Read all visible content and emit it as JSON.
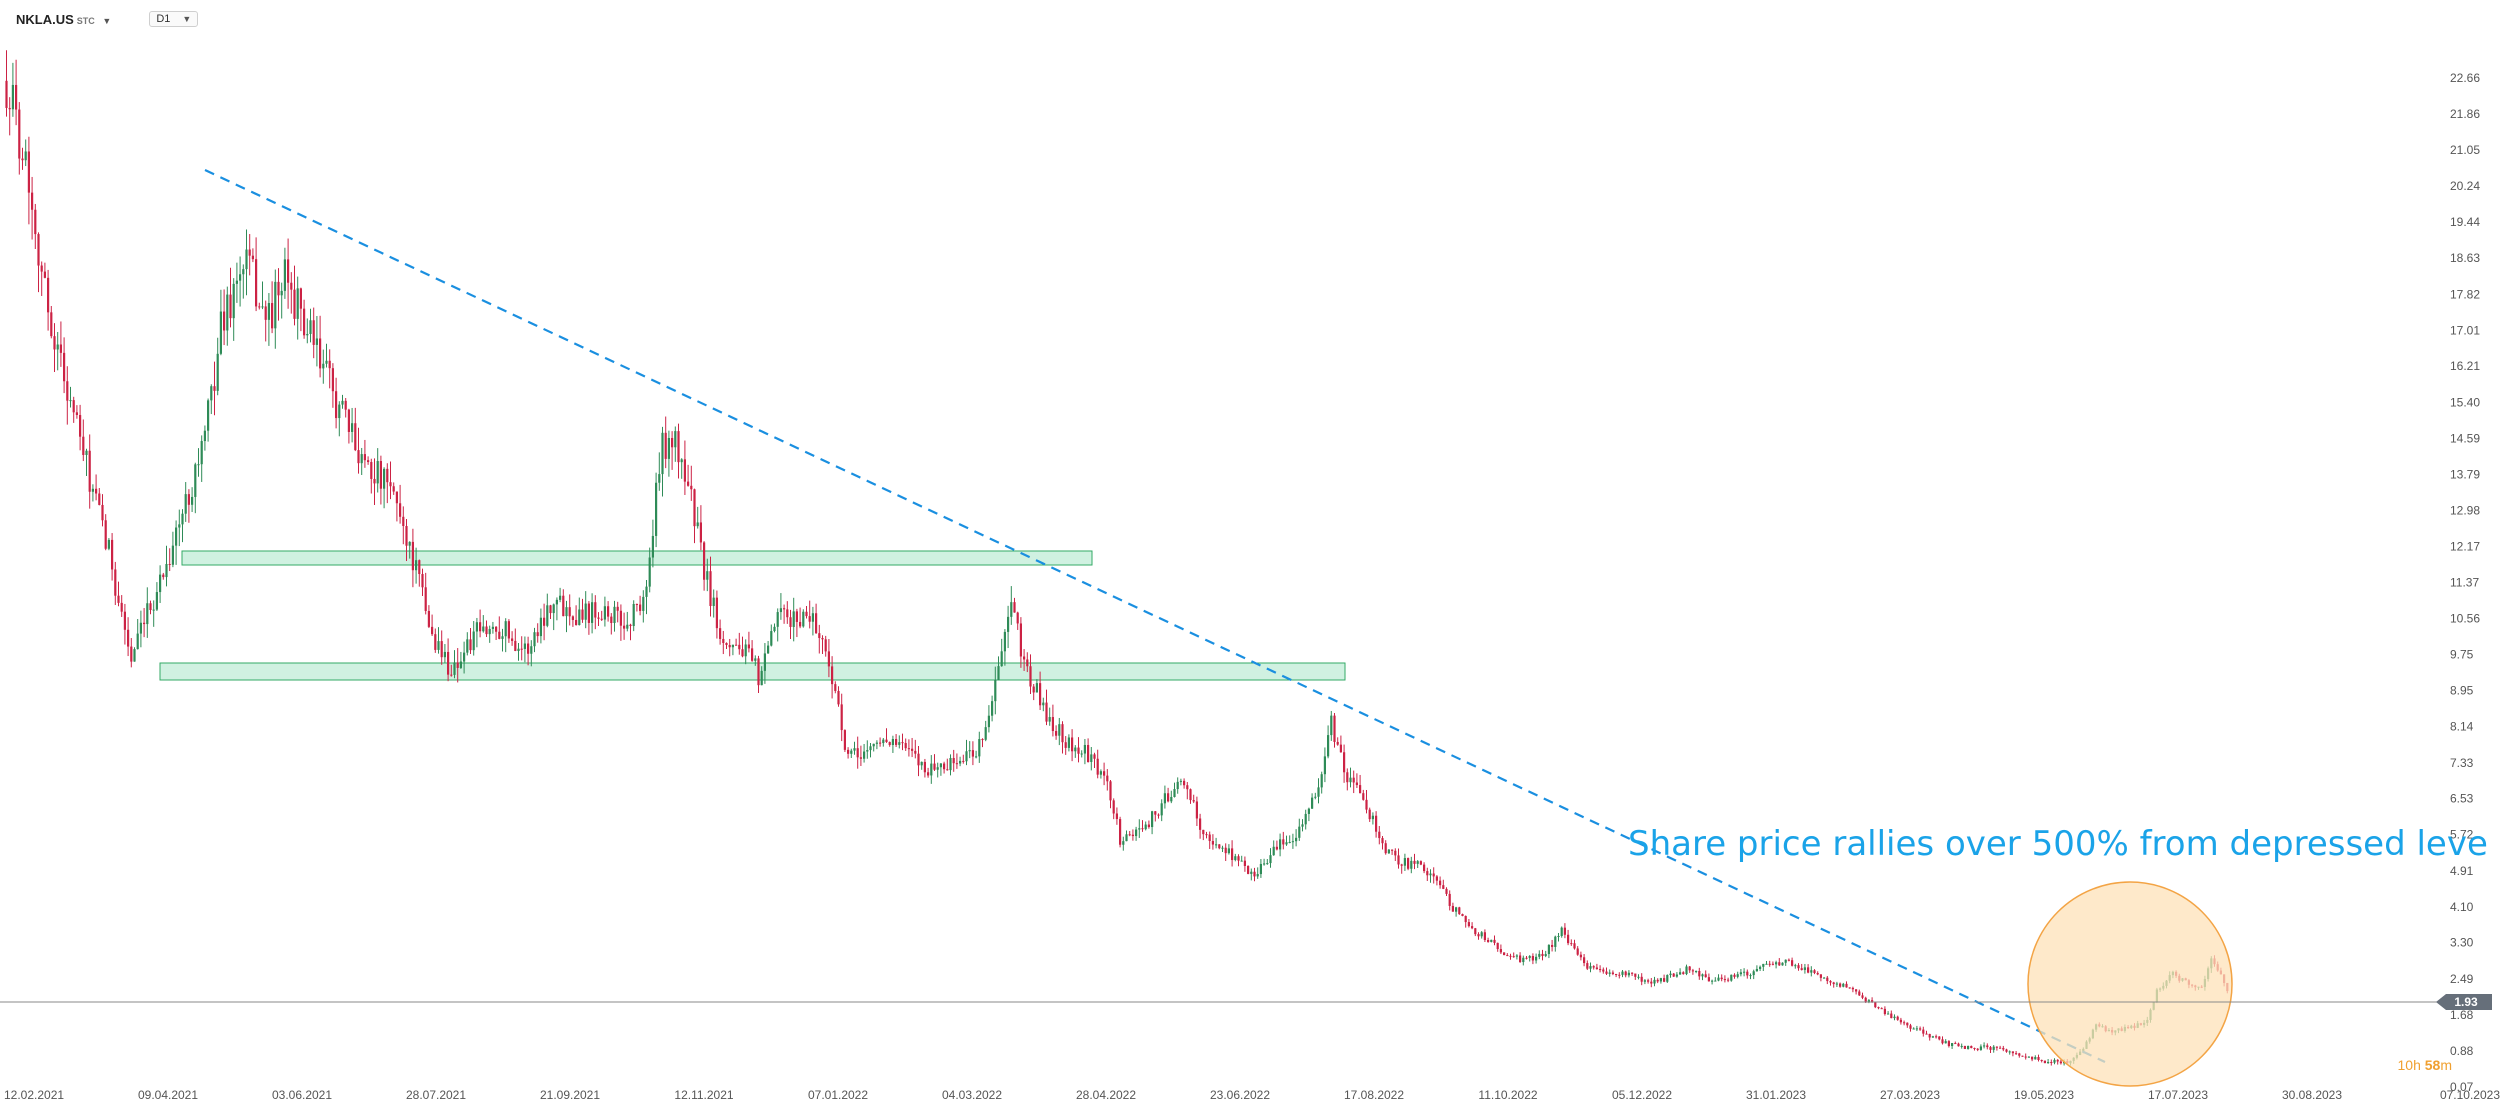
{
  "toolbar": {
    "symbol": "NKLA.US",
    "symbol_sub": "STC",
    "timeframe": "D1",
    "dropdown_icon": "caret-down-icon"
  },
  "countdown": {
    "hours": "10h",
    "minutes": "58",
    "unit": "m"
  },
  "colors": {
    "up": "#2e8b57",
    "down": "#cc2244",
    "trendline": "#1a8fe0",
    "zone_fill": "#c8efdc",
    "zone_stroke": "#33aa66",
    "highlight_fill": "#fde2b8",
    "highlight_stroke": "#f3a445",
    "current_price_bg": "#666f7a",
    "annotation": "#1aa3e8",
    "countdown": "#f0a030"
  },
  "chart_data": {
    "type": "candlestick",
    "ylim": [
      0.07,
      23.2
    ],
    "y_ticks": [
      "22.66",
      "21.86",
      "21.05",
      "20.24",
      "19.44",
      "18.63",
      "17.82",
      "17.01",
      "16.21",
      "15.40",
      "14.59",
      "13.79",
      "12.98",
      "12.17",
      "11.37",
      "10.56",
      "9.75",
      "8.95",
      "8.14",
      "7.33",
      "6.53",
      "5.72",
      "4.91",
      "4.10",
      "3.30",
      "2.49",
      "1.68",
      "0.88",
      "0.07"
    ],
    "x_ticks": [
      "12.02.2021",
      "09.04.2021",
      "03.06.2021",
      "28.07.2021",
      "21.09.2021",
      "12.11.2021",
      "07.01.2022",
      "04.03.2022",
      "28.04.2022",
      "23.06.2022",
      "17.08.2022",
      "11.10.2022",
      "05.12.2022",
      "31.01.2023",
      "27.03.2023",
      "19.05.2023",
      "17.07.2023",
      "30.08.2023",
      "07.10.2023"
    ],
    "current_price": "1.93",
    "annotation": "Share price rallies over 500% from depressed leve",
    "price_path": [
      [
        0,
        22.6
      ],
      [
        20,
        20.8
      ],
      [
        40,
        17.6
      ],
      [
        60,
        15.8
      ],
      [
        85,
        13.5
      ],
      [
        105,
        11.8
      ],
      [
        125,
        9.6
      ],
      [
        150,
        11.2
      ],
      [
        175,
        12.8
      ],
      [
        200,
        14.8
      ],
      [
        215,
        17.2
      ],
      [
        240,
        18.6
      ],
      [
        260,
        17.2
      ],
      [
        280,
        18.2
      ],
      [
        300,
        17.0
      ],
      [
        320,
        16.0
      ],
      [
        345,
        14.6
      ],
      [
        370,
        13.8
      ],
      [
        390,
        13.2
      ],
      [
        410,
        11.6
      ],
      [
        425,
        10.2
      ],
      [
        445,
        9.4
      ],
      [
        470,
        10.2
      ],
      [
        495,
        10.4
      ],
      [
        520,
        9.8
      ],
      [
        545,
        11.0
      ],
      [
        570,
        10.7
      ],
      [
        595,
        10.8
      ],
      [
        620,
        10.4
      ],
      [
        640,
        11.2
      ],
      [
        655,
        14.4
      ],
      [
        665,
        14.6
      ],
      [
        680,
        13.8
      ],
      [
        700,
        11.4
      ],
      [
        715,
        10.2
      ],
      [
        735,
        9.9
      ],
      [
        755,
        9.2
      ],
      [
        770,
        10.6
      ],
      [
        785,
        10.5
      ],
      [
        805,
        10.7
      ],
      [
        825,
        9.4
      ],
      [
        840,
        7.4
      ],
      [
        860,
        7.6
      ],
      [
        880,
        7.9
      ],
      [
        900,
        7.6
      ],
      [
        920,
        7.2
      ],
      [
        945,
        7.3
      ],
      [
        970,
        7.6
      ],
      [
        985,
        8.6
      ],
      [
        995,
        9.8
      ],
      [
        1005,
        10.8
      ],
      [
        1020,
        9.4
      ],
      [
        1040,
        8.4
      ],
      [
        1060,
        7.8
      ],
      [
        1080,
        7.5
      ],
      [
        1100,
        6.9
      ],
      [
        1115,
        5.5
      ],
      [
        1130,
        5.8
      ],
      [
        1150,
        6.2
      ],
      [
        1170,
        6.9
      ],
      [
        1185,
        6.5
      ],
      [
        1200,
        5.6
      ],
      [
        1225,
        5.3
      ],
      [
        1245,
        4.8
      ],
      [
        1265,
        5.3
      ],
      [
        1290,
        5.8
      ],
      [
        1310,
        6.6
      ],
      [
        1325,
        8.2
      ],
      [
        1340,
        7.0
      ],
      [
        1360,
        6.4
      ],
      [
        1380,
        5.3
      ],
      [
        1400,
        5.1
      ],
      [
        1425,
        4.9
      ],
      [
        1440,
        4.3
      ],
      [
        1460,
        3.7
      ],
      [
        1480,
        3.4
      ],
      [
        1500,
        3.0
      ],
      [
        1520,
        2.9
      ],
      [
        1540,
        3.1
      ],
      [
        1555,
        3.6
      ],
      [
        1565,
        3.2
      ],
      [
        1580,
        2.8
      ],
      [
        1600,
        2.6
      ],
      [
        1620,
        2.6
      ],
      [
        1640,
        2.4
      ],
      [
        1660,
        2.5
      ],
      [
        1680,
        2.7
      ],
      [
        1700,
        2.5
      ],
      [
        1720,
        2.5
      ],
      [
        1740,
        2.6
      ],
      [
        1760,
        2.8
      ],
      [
        1780,
        2.9
      ],
      [
        1800,
        2.7
      ],
      [
        1820,
        2.5
      ],
      [
        1840,
        2.3
      ],
      [
        1860,
        2.0
      ],
      [
        1880,
        1.7
      ],
      [
        1900,
        1.45
      ],
      [
        1920,
        1.25
      ],
      [
        1940,
        1.05
      ],
      [
        1960,
        0.95
      ],
      [
        1980,
        0.95
      ],
      [
        2000,
        0.9
      ],
      [
        2020,
        0.75
      ],
      [
        2040,
        0.65
      ],
      [
        2058,
        0.6
      ],
      [
        2075,
        0.85
      ],
      [
        2090,
        1.45
      ],
      [
        2105,
        1.3
      ],
      [
        2125,
        1.4
      ],
      [
        2140,
        1.55
      ],
      [
        2150,
        2.2
      ],
      [
        2165,
        2.6
      ],
      [
        2180,
        2.4
      ],
      [
        2195,
        2.3
      ],
      [
        2205,
        3.0
      ],
      [
        2215,
        2.5
      ],
      [
        2222,
        2.1
      ]
    ]
  }
}
